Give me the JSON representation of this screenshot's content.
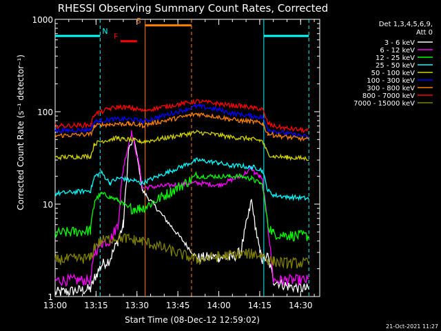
{
  "chart_data": {
    "type": "line",
    "title": "RHESSI Observing Summary Count Rates, Corrected",
    "xlabel": "Start Time (08-Dec-12 12:59:02)",
    "ylabel": "Corrected Count Rate (s⁻¹ detector⁻¹)",
    "x_unit": "minutes after 13:00",
    "xlim": [
      0,
      97
    ],
    "ylim": [
      1,
      1000
    ],
    "y_scale": "log",
    "x_ticks": [
      {
        "v": 0,
        "label": "13:00"
      },
      {
        "v": 15,
        "label": "13:15"
      },
      {
        "v": 30,
        "label": "13:30"
      },
      {
        "v": 45,
        "label": "13:45"
      },
      {
        "v": 60,
        "label": "14:00"
      },
      {
        "v": 75,
        "label": "14:15"
      },
      {
        "v": 90,
        "label": "14:30"
      }
    ],
    "y_ticks": [
      {
        "v": 1,
        "label": "1"
      },
      {
        "v": 10,
        "label": "10"
      },
      {
        "v": 100,
        "label": "100"
      },
      {
        "v": 1000,
        "label": "1000"
      }
    ],
    "legend": {
      "placement": "right",
      "header": [
        "Det 1,3,4,5,6,9,",
        "Att 0"
      ]
    },
    "series": [
      {
        "name": "3 - 6 keV",
        "color": "#ffffff",
        "data": [
          [
            0,
            1.1
          ],
          [
            13,
            1.2
          ],
          [
            14.5,
            1.6
          ],
          [
            17,
            2.2
          ],
          [
            20,
            2.5
          ],
          [
            23,
            4
          ],
          [
            25,
            6
          ],
          [
            27,
            40
          ],
          [
            29,
            50
          ],
          [
            31,
            22
          ],
          [
            32,
            14
          ],
          [
            52,
            2.6
          ],
          [
            60,
            2.7
          ],
          [
            64,
            2.6
          ],
          [
            68,
            3
          ],
          [
            71,
            8
          ],
          [
            72,
            11
          ],
          [
            73,
            7
          ],
          [
            75,
            3
          ],
          [
            76,
            2.5
          ],
          [
            78,
            2.7
          ],
          [
            80,
            1.5
          ],
          [
            85,
            1.3
          ],
          [
            93,
            1.2
          ]
        ]
      },
      {
        "name": "6 - 12 keV",
        "color": "#ff00ff",
        "data": [
          [
            0,
            1.5
          ],
          [
            13,
            1.5
          ],
          [
            14.5,
            3
          ],
          [
            17,
            3.8
          ],
          [
            20,
            4
          ],
          [
            23,
            6
          ],
          [
            25,
            25
          ],
          [
            27,
            45
          ],
          [
            28,
            60
          ],
          [
            29,
            45
          ],
          [
            31,
            25
          ],
          [
            32,
            15
          ],
          [
            52,
            17
          ],
          [
            60,
            16
          ],
          [
            64,
            18
          ],
          [
            68,
            20
          ],
          [
            71,
            23
          ],
          [
            72,
            25
          ],
          [
            73,
            22
          ],
          [
            75,
            20
          ],
          [
            76,
            18
          ],
          [
            78,
            6
          ],
          [
            80,
            1.5
          ],
          [
            85,
            1.5
          ],
          [
            93,
            1.5
          ]
        ]
      },
      {
        "name": "12 - 25 keV",
        "color": "#00ff00",
        "data": [
          [
            0,
            4.8
          ],
          [
            13,
            5.2
          ],
          [
            14.5,
            11
          ],
          [
            17,
            13
          ],
          [
            20,
            12
          ],
          [
            23,
            11
          ],
          [
            25,
            10
          ],
          [
            27,
            9
          ],
          [
            29,
            9
          ],
          [
            31,
            9
          ],
          [
            32,
            9
          ],
          [
            52,
            20
          ],
          [
            60,
            20
          ],
          [
            64,
            20
          ],
          [
            68,
            20
          ],
          [
            71,
            19
          ],
          [
            72,
            19
          ],
          [
            73,
            18
          ],
          [
            75,
            17
          ],
          [
            76,
            16
          ],
          [
            78,
            6
          ],
          [
            80,
            4.8
          ],
          [
            85,
            4.6
          ],
          [
            93,
            4.5
          ]
        ]
      },
      {
        "name": "25 - 50 keV",
        "color": "#00ffff",
        "data": [
          [
            0,
            13
          ],
          [
            13,
            14
          ],
          [
            14.5,
            20
          ],
          [
            17,
            22
          ],
          [
            20,
            17
          ],
          [
            23,
            19
          ],
          [
            25,
            19
          ],
          [
            27,
            18
          ],
          [
            29,
            18
          ],
          [
            31,
            17
          ],
          [
            32,
            17
          ],
          [
            52,
            30
          ],
          [
            60,
            28
          ],
          [
            64,
            26
          ],
          [
            68,
            26
          ],
          [
            71,
            25
          ],
          [
            72,
            25
          ],
          [
            73,
            25
          ],
          [
            75,
            24
          ],
          [
            76,
            23
          ],
          [
            78,
            14
          ],
          [
            80,
            12.5
          ],
          [
            85,
            12
          ],
          [
            93,
            11.5
          ]
        ]
      },
      {
        "name": "50 - 100 keV",
        "color": "#d2d200",
        "data": [
          [
            0,
            32
          ],
          [
            13,
            33
          ],
          [
            14.5,
            45
          ],
          [
            17,
            48
          ],
          [
            20,
            50
          ],
          [
            23,
            52
          ],
          [
            25,
            50
          ],
          [
            27,
            50
          ],
          [
            29,
            49
          ],
          [
            31,
            48
          ],
          [
            32,
            47
          ],
          [
            52,
            60
          ],
          [
            60,
            56
          ],
          [
            64,
            53
          ],
          [
            68,
            52
          ],
          [
            71,
            51
          ],
          [
            72,
            50
          ],
          [
            73,
            50
          ],
          [
            75,
            49
          ],
          [
            76,
            48
          ],
          [
            78,
            35
          ],
          [
            80,
            33
          ],
          [
            85,
            32
          ],
          [
            93,
            31
          ]
        ]
      },
      {
        "name": "100 - 300 keV",
        "color": "#0000ff",
        "data": [
          [
            0,
            62
          ],
          [
            13,
            64
          ],
          [
            14.5,
            78
          ],
          [
            17,
            80
          ],
          [
            20,
            82
          ],
          [
            23,
            83
          ],
          [
            25,
            83
          ],
          [
            27,
            83
          ],
          [
            29,
            82
          ],
          [
            31,
            80
          ],
          [
            32,
            78
          ],
          [
            52,
            115
          ],
          [
            60,
            105
          ],
          [
            64,
            97
          ],
          [
            68,
            93
          ],
          [
            71,
            91
          ],
          [
            72,
            90
          ],
          [
            73,
            89
          ],
          [
            75,
            88
          ],
          [
            76,
            87
          ],
          [
            78,
            65
          ],
          [
            80,
            62
          ],
          [
            85,
            58
          ],
          [
            93,
            53
          ]
        ]
      },
      {
        "name": "300 - 800 keV",
        "color": "#ff8000",
        "data": [
          [
            0,
            55
          ],
          [
            13,
            57
          ],
          [
            14.5,
            70
          ],
          [
            17,
            72
          ],
          [
            20,
            73
          ],
          [
            23,
            74
          ],
          [
            25,
            74
          ],
          [
            27,
            74
          ],
          [
            29,
            73
          ],
          [
            31,
            72
          ],
          [
            32,
            71
          ],
          [
            52,
            95
          ],
          [
            60,
            88
          ],
          [
            64,
            83
          ],
          [
            68,
            80
          ],
          [
            71,
            79
          ],
          [
            72,
            78
          ],
          [
            73,
            77
          ],
          [
            75,
            76
          ],
          [
            76,
            75
          ],
          [
            78,
            58
          ],
          [
            80,
            56
          ],
          [
            85,
            53
          ],
          [
            93,
            50
          ]
        ]
      },
      {
        "name": "800 - 7000 keV",
        "color": "#ff0000",
        "data": [
          [
            0,
            70
          ],
          [
            13,
            72
          ],
          [
            14.5,
            95
          ],
          [
            17,
            100
          ],
          [
            20,
            108
          ],
          [
            23,
            112
          ],
          [
            25,
            112
          ],
          [
            27,
            110
          ],
          [
            29,
            108
          ],
          [
            31,
            105
          ],
          [
            32,
            103
          ],
          [
            52,
            130
          ],
          [
            60,
            122
          ],
          [
            64,
            117
          ],
          [
            68,
            115
          ],
          [
            71,
            112
          ],
          [
            72,
            110
          ],
          [
            73,
            110
          ],
          [
            75,
            108
          ],
          [
            76,
            106
          ],
          [
            78,
            75
          ],
          [
            80,
            70
          ],
          [
            85,
            66
          ],
          [
            93,
            62
          ]
        ]
      },
      {
        "name": "7000 - 15000 keV",
        "color": "#808000",
        "data": [
          [
            0,
            2.5
          ],
          [
            13,
            2.6
          ],
          [
            14.5,
            3.5
          ],
          [
            17,
            4
          ],
          [
            20,
            4.2
          ],
          [
            23,
            4.3
          ],
          [
            25,
            4.3
          ],
          [
            27,
            4.2
          ],
          [
            29,
            4.1
          ],
          [
            31,
            4
          ],
          [
            32,
            4
          ],
          [
            52,
            2.5
          ],
          [
            60,
            2.7
          ],
          [
            64,
            2.8
          ],
          [
            68,
            2.9
          ],
          [
            71,
            2.9
          ],
          [
            72,
            2.9
          ],
          [
            73,
            2.9
          ],
          [
            75,
            2.8
          ],
          [
            76,
            2.8
          ],
          [
            78,
            2.5
          ],
          [
            80,
            2.4
          ],
          [
            85,
            2.3
          ],
          [
            93,
            2.3
          ]
        ]
      }
    ],
    "annotations": [
      {
        "type": "bar",
        "label": "N",
        "color": "#00ffff",
        "x_ranges": [
          [
            0,
            16.5
          ],
          [
            76.5,
            93
          ]
        ],
        "y": 660
      },
      {
        "type": "bar",
        "label": "F",
        "color": "#ff0000",
        "x_ranges": [
          [
            24,
            30
          ]
        ],
        "y": 580
      },
      {
        "type": "bar",
        "label": "S",
        "color": "#ff8000",
        "x_ranges": [
          [
            33,
            50
          ]
        ],
        "y": 860
      }
    ],
    "vlines": [
      {
        "x": 16.5,
        "color": "#00ffff",
        "dash": true
      },
      {
        "x": 76.5,
        "color": "#00ffff",
        "dash": false
      },
      {
        "x": 93,
        "color": "#00ffff",
        "dash": true
      },
      {
        "x": 33,
        "color": "#ff8000",
        "dash": false
      },
      {
        "x": 50,
        "color": "#ff8000",
        "dash": true
      }
    ]
  },
  "footer": {
    "timestamp": "21-Oct-2021 11:27"
  }
}
